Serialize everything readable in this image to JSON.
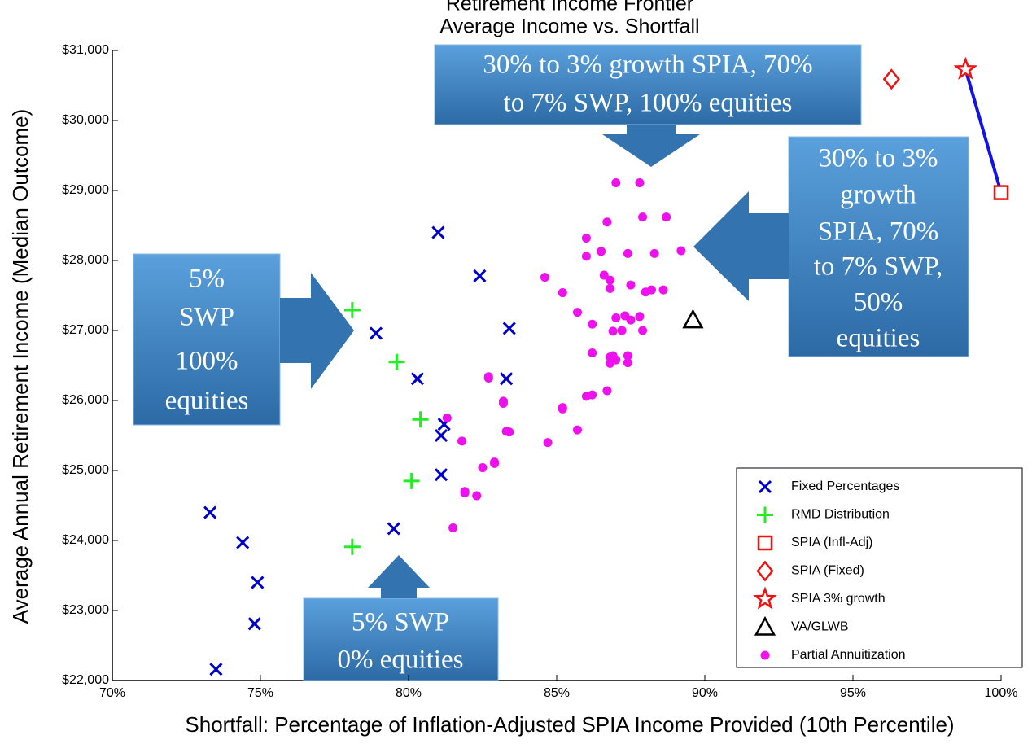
{
  "chart_data": {
    "type": "scatter",
    "title": "Retirement Income Frontier",
    "subtitle": "Average Income vs. Shortfall",
    "xlabel": "Shortfall: Percentage of Inflation-Adjusted SPIA Income Provided (10th Percentile)",
    "ylabel": "Average Annual Retirement Income (Median Outcome)",
    "xlim": [
      70,
      100
    ],
    "ylim": [
      22000,
      31000
    ],
    "xticks": [
      {
        "value": 70,
        "label": "70%"
      },
      {
        "value": 75,
        "label": "75%"
      },
      {
        "value": 80,
        "label": "80%"
      },
      {
        "value": 85,
        "label": "85%"
      },
      {
        "value": 90,
        "label": "90%"
      },
      {
        "value": 95,
        "label": "95%"
      },
      {
        "value": 100,
        "label": "100%"
      }
    ],
    "yticks": [
      {
        "value": 22000,
        "label": "$22,000"
      },
      {
        "value": 23000,
        "label": "$23,000"
      },
      {
        "value": 24000,
        "label": "$24,000"
      },
      {
        "value": 25000,
        "label": "$25,000"
      },
      {
        "value": 26000,
        "label": "$26,000"
      },
      {
        "value": 27000,
        "label": "$27,000"
      },
      {
        "value": 28000,
        "label": "$28,000"
      },
      {
        "value": 29000,
        "label": "$29,000"
      },
      {
        "value": 30000,
        "label": "$30,000"
      },
      {
        "value": 31000,
        "label": "$31,000"
      }
    ],
    "legend": "lower right",
    "series": [
      {
        "name": "Fixed Percentages",
        "color": "#0000cc",
        "marker": "x",
        "x": [
          73.3,
          74.4,
          74.9,
          74.8,
          73.5,
          81.0,
          82.4,
          78.9,
          83.4,
          80.3,
          83.3,
          81.2,
          81.1,
          81.1,
          79.5
        ],
        "values": [
          24400,
          23970,
          23400,
          22810,
          22160,
          28400,
          27780,
          26960,
          27030,
          26310,
          26310,
          25660,
          25500,
          24940,
          24170
        ]
      },
      {
        "name": "RMD Distribution",
        "color": "#22ee22",
        "marker": "plus",
        "x": [
          78.1,
          79.6,
          80.4,
          80.1,
          78.1
        ],
        "values": [
          27290,
          26550,
          25730,
          24850,
          23910
        ]
      },
      {
        "name": "SPIA (Infl-Adj)",
        "color": "#ee1111",
        "marker": "square",
        "x": [
          100
        ],
        "values": [
          28970
        ]
      },
      {
        "name": "SPIA (Fixed)",
        "color": "#ee1111",
        "marker": "diamond",
        "x": [
          96.3
        ],
        "values": [
          30590
        ]
      },
      {
        "name": "SPIA 3% growth",
        "color": "#ee1111",
        "marker": "star",
        "x": [
          98.8
        ],
        "values": [
          30730
        ]
      },
      {
        "name": "VA/GLWB",
        "color": "#000000",
        "marker": "triangle",
        "x": [
          89.6
        ],
        "values": [
          27150
        ]
      },
      {
        "name": "Partial Annuitization",
        "color": "#ee11ee",
        "marker": "dot",
        "x": [
          87.0,
          87.8,
          86.7,
          87.9,
          88.7,
          86.0,
          86.0,
          86.5,
          87.4,
          88.3,
          89.2,
          84.6,
          85.2,
          85.7,
          86.6,
          86.8,
          86.8,
          87.5,
          88.0,
          88.2,
          88.6,
          87.3,
          87.0,
          87.5,
          87.8,
          87.2,
          87.9,
          86.9,
          86.2,
          86.2,
          86.8,
          87.0,
          86.8,
          87.4,
          87.4,
          86.9,
          86.0,
          86.2,
          85.7,
          85.2,
          85.2,
          86.7,
          82.7,
          82.7,
          83.2,
          83.2,
          83.3,
          83.4,
          81.3,
          81.8,
          84.7,
          82.9,
          82.9,
          82.5,
          81.9,
          81.9,
          82.3,
          81.5
        ],
        "values": [
          29110,
          29110,
          28550,
          28620,
          28620,
          28320,
          28060,
          28130,
          28100,
          28100,
          28140,
          27760,
          27540,
          27260,
          27790,
          27600,
          27720,
          27650,
          27550,
          27580,
          27580,
          27210,
          27180,
          27150,
          27200,
          27000,
          27000,
          26990,
          27090,
          26680,
          26620,
          26580,
          26530,
          26540,
          26640,
          26640,
          26060,
          26080,
          25580,
          25900,
          25880,
          26140,
          26340,
          26320,
          25990,
          25960,
          25560,
          25550,
          25750,
          25420,
          25400,
          25100,
          25120,
          25040,
          24700,
          24680,
          24640,
          24180
        ]
      }
    ],
    "annotations": [
      {
        "lines": [
          "30% to 3% growth SPIA, 70%",
          "to 7% SWP, 100% equities"
        ]
      },
      {
        "lines": [
          "30% to 3%",
          "growth",
          "SPIA, 70%",
          "to 7% SWP,",
          "50%",
          "equities"
        ]
      },
      {
        "lines": [
          "5%",
          "SWP",
          "100%",
          "equities"
        ]
      },
      {
        "lines": [
          "5% SWP",
          "0% equities"
        ]
      }
    ]
  }
}
